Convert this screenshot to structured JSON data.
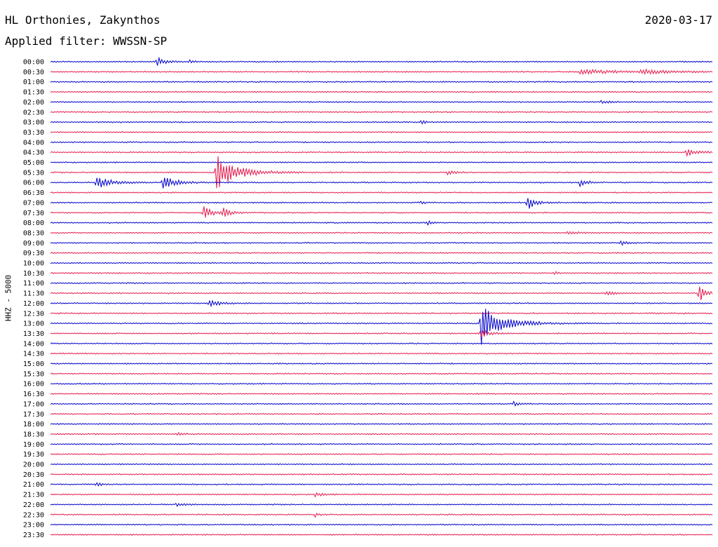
{
  "header": {
    "station": "HL Orthonies, Zakynthos",
    "filter": "Applied filter: WWSSN-SP",
    "date": "2020-03-17"
  },
  "chart_data": {
    "type": "line",
    "title": "HL Orthonies, Zakynthos",
    "subtitle": "Applied filter: WWSSN-SP",
    "ylabel": "HHZ - 5000",
    "xlabel": "",
    "colors": {
      "odd": "#0000cc",
      "even": "#e6194b"
    },
    "categories": [
      "00:00",
      "00:30",
      "01:00",
      "01:30",
      "02:00",
      "02:30",
      "03:00",
      "03:30",
      "04:00",
      "04:30",
      "05:00",
      "05:30",
      "06:00",
      "06:30",
      "07:00",
      "07:30",
      "08:00",
      "08:30",
      "09:00",
      "09:30",
      "10:00",
      "10:30",
      "11:00",
      "11:30",
      "12:00",
      "12:30",
      "13:00",
      "13:30",
      "14:00",
      "14:30",
      "15:00",
      "15:30",
      "16:00",
      "16:30",
      "17:00",
      "17:30",
      "18:00",
      "18:30",
      "19:00",
      "19:30",
      "20:00",
      "20:30",
      "21:00",
      "21:30",
      "22:00",
      "22:30",
      "23:00",
      "23:30"
    ],
    "tick_labels": [
      "00:00",
      "00:30",
      "01:00",
      "01:30",
      "02:00",
      "02:30",
      "03:00",
      "03:30",
      "04:00",
      "04:30",
      "05:00",
      "05:30",
      "06:00",
      "06:30",
      "07:00",
      "07:30",
      "08:00",
      "08:30",
      "09:00",
      "09:30",
      "10:00",
      "10:30",
      "11:00",
      "11:30",
      "12:00",
      "12:30",
      "13:00",
      "13:30",
      "14:00",
      "14:30",
      "15:00",
      "15:30",
      "16:00",
      "16:30",
      "17:00",
      "17:30",
      "18:00",
      "18:30",
      "19:00",
      "19:30",
      "20:00",
      "20:30",
      "21:00",
      "21:30",
      "22:00",
      "22:30",
      "23:00",
      "23:30"
    ],
    "events": [
      {
        "trace": 0,
        "t": 0.16,
        "amp": 0.6,
        "dur": 0.01
      },
      {
        "trace": 0,
        "t": 0.21,
        "amp": 0.2,
        "dur": 0.005
      },
      {
        "trace": 1,
        "t": 0.8,
        "amp": 0.25,
        "dur": 0.05
      },
      {
        "trace": 1,
        "t": 0.89,
        "amp": 0.2,
        "dur": 0.04
      },
      {
        "trace": 4,
        "t": 0.83,
        "amp": 0.2,
        "dur": 0.01
      },
      {
        "trace": 6,
        "t": 0.56,
        "amp": 0.3,
        "dur": 0.005
      },
      {
        "trace": 9,
        "t": 0.96,
        "amp": 0.35,
        "dur": 0.015
      },
      {
        "trace": 11,
        "t": 0.25,
        "amp": 1.8,
        "dur": 0.03
      },
      {
        "trace": 11,
        "t": 0.6,
        "amp": 0.2,
        "dur": 0.01
      },
      {
        "trace": 12,
        "t": 0.07,
        "amp": 0.6,
        "dur": 0.02
      },
      {
        "trace": 12,
        "t": 0.17,
        "amp": 0.6,
        "dur": 0.02
      },
      {
        "trace": 12,
        "t": 0.8,
        "amp": 0.4,
        "dur": 0.01
      },
      {
        "trace": 14,
        "t": 0.72,
        "amp": 0.8,
        "dur": 0.01
      },
      {
        "trace": 14,
        "t": 0.56,
        "amp": 0.2,
        "dur": 0.005
      },
      {
        "trace": 15,
        "t": 0.23,
        "amp": 1.0,
        "dur": 0.01
      },
      {
        "trace": 15,
        "t": 0.26,
        "amp": 0.5,
        "dur": 0.01
      },
      {
        "trace": 16,
        "t": 0.57,
        "amp": 0.2,
        "dur": 0.005
      },
      {
        "trace": 17,
        "t": 0.78,
        "amp": 0.2,
        "dur": 0.015
      },
      {
        "trace": 18,
        "t": 0.86,
        "amp": 0.3,
        "dur": 0.008
      },
      {
        "trace": 21,
        "t": 0.76,
        "amp": 0.2,
        "dur": 0.005
      },
      {
        "trace": 23,
        "t": 0.98,
        "amp": 0.9,
        "dur": 0.01
      },
      {
        "trace": 23,
        "t": 0.84,
        "amp": 0.2,
        "dur": 0.01
      },
      {
        "trace": 24,
        "t": 0.24,
        "amp": 0.35,
        "dur": 0.015
      },
      {
        "trace": 26,
        "t": 0.65,
        "amp": 2.2,
        "dur": 0.03
      },
      {
        "trace": 27,
        "t": 0.65,
        "amp": 0.5,
        "dur": 0.01
      },
      {
        "trace": 34,
        "t": 0.7,
        "amp": 0.2,
        "dur": 0.008
      },
      {
        "trace": 37,
        "t": 0.19,
        "amp": 0.2,
        "dur": 0.01
      },
      {
        "trace": 42,
        "t": 0.07,
        "amp": 0.2,
        "dur": 0.005
      },
      {
        "trace": 43,
        "t": 0.4,
        "amp": 0.2,
        "dur": 0.01
      },
      {
        "trace": 44,
        "t": 0.19,
        "amp": 0.25,
        "dur": 0.008
      },
      {
        "trace": 45,
        "t": 0.4,
        "amp": 0.2,
        "dur": 0.005
      }
    ]
  }
}
